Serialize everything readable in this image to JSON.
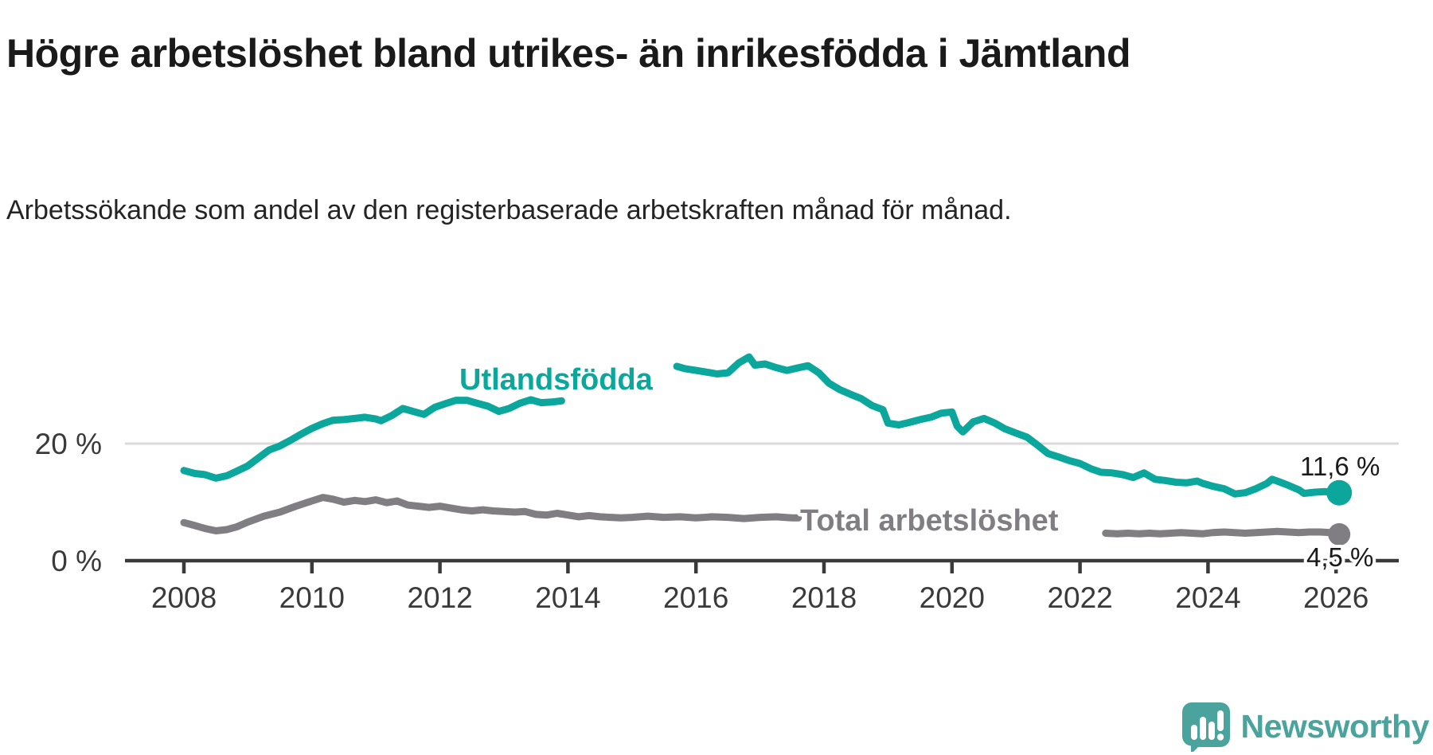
{
  "header": {
    "title": "Högre arbetslöshet bland utrikes- än inrikesfödda i Jämtland",
    "subtitle": "Arbetssökande som andel av den registerbaserade arbetskraften månad för månad."
  },
  "chart_data": {
    "type": "line",
    "title": "Högre arbetslöshet bland utrikes- än inrikesfödda i Jämtland",
    "subtitle": "Arbetssökande som andel av den registerbaserade arbetskraften månad för månad.",
    "unit": "%",
    "grid": "only 20% horizontal gridline",
    "legend_position": "inline series labels",
    "x_axis": {
      "ticks": [
        2008,
        2010,
        2012,
        2014,
        2016,
        2018,
        2020,
        2022,
        2024,
        2026
      ],
      "range": [
        2007.1,
        2027.0
      ]
    },
    "y_axis": {
      "ticks": [
        {
          "value": 0,
          "label": "0 %"
        },
        {
          "value": 20,
          "label": "20 %"
        }
      ],
      "range": [
        0,
        36
      ]
    },
    "colors": {
      "utlandsfodda": "#0ba69c",
      "total": "#807e82",
      "axis": "#3a3a3a",
      "gridline": "#dadada",
      "end_label_text": "#1a1a1a"
    },
    "series": [
      {
        "name": "Utlandsfödda",
        "color": "#0ba69c",
        "end_label": "11,6 %",
        "end_value": 11.6,
        "segments": [
          [
            [
              2008.0,
              15.4
            ],
            [
              2008.17,
              14.9
            ],
            [
              2008.33,
              14.7
            ],
            [
              2008.5,
              14.1
            ],
            [
              2008.67,
              14.5
            ],
            [
              2008.83,
              15.3
            ],
            [
              2009.0,
              16.2
            ],
            [
              2009.17,
              17.6
            ],
            [
              2009.33,
              18.9
            ],
            [
              2009.5,
              19.6
            ],
            [
              2009.67,
              20.6
            ],
            [
              2009.83,
              21.6
            ],
            [
              2010.0,
              22.6
            ],
            [
              2010.17,
              23.4
            ],
            [
              2010.33,
              24.0
            ],
            [
              2010.5,
              24.1
            ],
            [
              2010.67,
              24.3
            ],
            [
              2010.83,
              24.5
            ],
            [
              2011.0,
              24.2
            ],
            [
              2011.08,
              23.9
            ],
            [
              2011.25,
              24.8
            ],
            [
              2011.42,
              26.0
            ],
            [
              2011.58,
              25.5
            ],
            [
              2011.75,
              25.0
            ],
            [
              2011.92,
              26.2
            ],
            [
              2012.08,
              26.8
            ],
            [
              2012.25,
              27.4
            ],
            [
              2012.42,
              27.4
            ],
            [
              2012.58,
              26.9
            ],
            [
              2012.75,
              26.4
            ],
            [
              2012.92,
              25.5
            ],
            [
              2013.08,
              26.0
            ],
            [
              2013.25,
              26.9
            ],
            [
              2013.42,
              27.5
            ],
            [
              2013.58,
              27.0
            ],
            [
              2013.75,
              27.1
            ],
            [
              2013.9,
              27.3
            ]
          ],
          [
            [
              2015.7,
              33.2
            ],
            [
              2015.83,
              32.8
            ],
            [
              2016.0,
              32.5
            ],
            [
              2016.17,
              32.2
            ],
            [
              2016.33,
              31.9
            ],
            [
              2016.5,
              32.1
            ],
            [
              2016.67,
              33.8
            ],
            [
              2016.83,
              34.8
            ],
            [
              2016.92,
              33.4
            ],
            [
              2017.08,
              33.6
            ],
            [
              2017.25,
              33.0
            ],
            [
              2017.42,
              32.5
            ],
            [
              2017.58,
              32.9
            ],
            [
              2017.75,
              33.3
            ],
            [
              2017.92,
              32.1
            ],
            [
              2018.08,
              30.3
            ],
            [
              2018.25,
              29.2
            ],
            [
              2018.42,
              28.4
            ],
            [
              2018.58,
              27.7
            ],
            [
              2018.75,
              26.5
            ],
            [
              2018.92,
              25.8
            ],
            [
              2019.0,
              23.5
            ],
            [
              2019.17,
              23.2
            ],
            [
              2019.33,
              23.6
            ],
            [
              2019.5,
              24.1
            ],
            [
              2019.67,
              24.5
            ],
            [
              2019.83,
              25.2
            ],
            [
              2020.0,
              25.4
            ],
            [
              2020.08,
              23.0
            ],
            [
              2020.17,
              22.0
            ],
            [
              2020.33,
              23.7
            ],
            [
              2020.5,
              24.3
            ],
            [
              2020.67,
              23.5
            ],
            [
              2020.83,
              22.5
            ],
            [
              2021.0,
              21.8
            ],
            [
              2021.17,
              21.1
            ],
            [
              2021.33,
              19.8
            ],
            [
              2021.5,
              18.3
            ],
            [
              2021.67,
              17.7
            ],
            [
              2021.83,
              17.1
            ],
            [
              2022.0,
              16.6
            ],
            [
              2022.17,
              15.7
            ],
            [
              2022.33,
              15.1
            ],
            [
              2022.5,
              15.0
            ],
            [
              2022.67,
              14.7
            ],
            [
              2022.83,
              14.2
            ],
            [
              2023.0,
              15.0
            ],
            [
              2023.17,
              13.9
            ],
            [
              2023.33,
              13.7
            ],
            [
              2023.5,
              13.4
            ],
            [
              2023.67,
              13.3
            ],
            [
              2023.83,
              13.6
            ],
            [
              2023.92,
              13.2
            ],
            [
              2024.08,
              12.7
            ],
            [
              2024.25,
              12.3
            ],
            [
              2024.42,
              11.4
            ],
            [
              2024.58,
              11.6
            ],
            [
              2024.75,
              12.3
            ],
            [
              2024.92,
              13.2
            ],
            [
              2025.0,
              13.9
            ],
            [
              2025.08,
              13.6
            ],
            [
              2025.25,
              12.9
            ],
            [
              2025.42,
              12.1
            ],
            [
              2025.5,
              11.5
            ],
            [
              2025.67,
              11.7
            ],
            [
              2025.83,
              11.8
            ],
            [
              2025.92,
              11.7
            ],
            [
              2026.0,
              11.6
            ]
          ]
        ]
      },
      {
        "name": "Total arbetslöshet",
        "color": "#807e82",
        "end_label": "4,5 %",
        "end_value": 4.5,
        "segments": [
          [
            [
              2008.0,
              6.5
            ],
            [
              2008.17,
              6.0
            ],
            [
              2008.33,
              5.5
            ],
            [
              2008.5,
              5.1
            ],
            [
              2008.67,
              5.3
            ],
            [
              2008.83,
              5.8
            ],
            [
              2009.0,
              6.6
            ],
            [
              2009.25,
              7.6
            ],
            [
              2009.5,
              8.3
            ],
            [
              2009.75,
              9.3
            ],
            [
              2010.0,
              10.2
            ],
            [
              2010.17,
              10.8
            ],
            [
              2010.33,
              10.5
            ],
            [
              2010.5,
              10.0
            ],
            [
              2010.67,
              10.3
            ],
            [
              2010.83,
              10.1
            ],
            [
              2011.0,
              10.4
            ],
            [
              2011.17,
              9.9
            ],
            [
              2011.33,
              10.2
            ],
            [
              2011.5,
              9.5
            ],
            [
              2011.67,
              9.3
            ],
            [
              2011.83,
              9.1
            ],
            [
              2012.0,
              9.3
            ],
            [
              2012.17,
              9.0
            ],
            [
              2012.33,
              8.7
            ],
            [
              2012.5,
              8.5
            ],
            [
              2012.67,
              8.7
            ],
            [
              2012.83,
              8.5
            ],
            [
              2013.0,
              8.4
            ],
            [
              2013.17,
              8.3
            ],
            [
              2013.33,
              8.4
            ],
            [
              2013.5,
              7.9
            ],
            [
              2013.67,
              7.8
            ],
            [
              2013.83,
              8.1
            ],
            [
              2014.0,
              7.8
            ],
            [
              2014.17,
              7.5
            ],
            [
              2014.33,
              7.7
            ],
            [
              2014.5,
              7.5
            ],
            [
              2014.67,
              7.4
            ],
            [
              2014.83,
              7.3
            ],
            [
              2015.0,
              7.4
            ],
            [
              2015.25,
              7.6
            ],
            [
              2015.5,
              7.4
            ],
            [
              2015.75,
              7.5
            ],
            [
              2016.0,
              7.3
            ],
            [
              2016.25,
              7.5
            ],
            [
              2016.5,
              7.4
            ],
            [
              2016.75,
              7.2
            ],
            [
              2017.0,
              7.4
            ],
            [
              2017.25,
              7.5
            ],
            [
              2017.5,
              7.3
            ],
            [
              2017.6,
              7.3
            ]
          ],
          [
            [
              2022.4,
              4.7
            ],
            [
              2022.58,
              4.6
            ],
            [
              2022.75,
              4.7
            ],
            [
              2022.92,
              4.6
            ],
            [
              2023.08,
              4.7
            ],
            [
              2023.25,
              4.6
            ],
            [
              2023.42,
              4.7
            ],
            [
              2023.58,
              4.8
            ],
            [
              2023.75,
              4.7
            ],
            [
              2023.92,
              4.6
            ],
            [
              2024.08,
              4.8
            ],
            [
              2024.25,
              4.9
            ],
            [
              2024.42,
              4.8
            ],
            [
              2024.58,
              4.7
            ],
            [
              2024.75,
              4.8
            ],
            [
              2024.92,
              4.9
            ],
            [
              2025.08,
              5.0
            ],
            [
              2025.25,
              4.9
            ],
            [
              2025.42,
              4.8
            ],
            [
              2025.58,
              4.9
            ],
            [
              2025.75,
              4.9
            ],
            [
              2025.92,
              4.8
            ],
            [
              2026.0,
              4.5
            ]
          ]
        ]
      }
    ]
  },
  "branding": {
    "logo_text": "Newsworthy",
    "logo_color": "#4aa39d",
    "logo_icon": "speech-bubble-bar-chart-exclamation"
  }
}
